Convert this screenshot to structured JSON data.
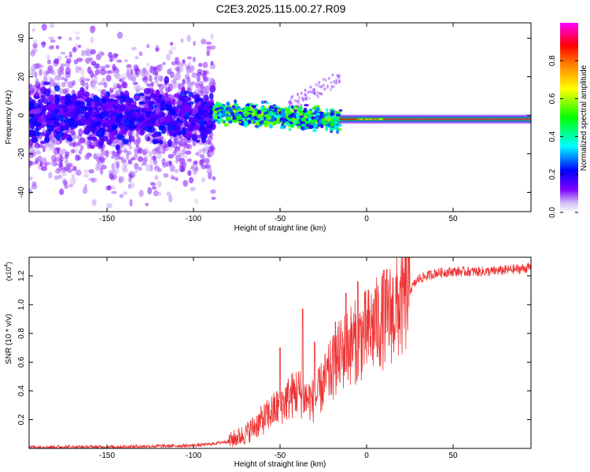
{
  "title": "C2E3.2025.115.00.27.R09",
  "chart_data": [
    {
      "type": "heatmap",
      "xlabel": "Height of straight line (km)",
      "ylabel": "Frequency (Hz)",
      "xlim": [
        -195,
        95
      ],
      "ylim": [
        -50,
        48
      ],
      "xticks": [
        -150,
        -100,
        -50,
        0,
        50
      ],
      "yticks": [
        -40,
        -20,
        0,
        20,
        40
      ],
      "colorbar": {
        "label": "Normalized spectral amplitude",
        "range": [
          0.0,
          1.0
        ],
        "ticks": [
          0.0,
          0.2,
          0.4,
          0.6,
          0.8
        ],
        "tick_labels": [
          "0.0",
          "0.2",
          "0.4",
          "0.6",
          "0.8"
        ],
        "colormap": [
          "#ffffff",
          "#c8b4f0",
          "#8000ff",
          "#0000ff",
          "#00ffff",
          "#00ff00",
          "#ffff00",
          "#ff8000",
          "#ff0000",
          "#ff00ff"
        ]
      },
      "features": [
        {
          "x_range": [
            -195,
            -90
          ],
          "freq_center": 0,
          "freq_spread": 45,
          "amplitude": "low, scattered"
        },
        {
          "x_range": [
            -90,
            -15
          ],
          "freq_center": 0,
          "freq_spread": 8,
          "amplitude": "medium"
        },
        {
          "x_range": [
            -15,
            95
          ],
          "freq_center": -2,
          "freq_spread": 2,
          "amplitude": "high"
        }
      ]
    },
    {
      "type": "line",
      "xlabel": "Height of straight line (km)",
      "ylabel": "SNR (10 * v/v)",
      "yscale_label": "(x10",
      "yscale_exp": "4",
      "xlim": [
        -195,
        95
      ],
      "ylim": [
        0,
        1.33
      ],
      "xticks": [
        -150,
        -100,
        -50,
        0,
        50
      ],
      "yticks": [
        0.2,
        0.4,
        0.6,
        0.8,
        1.0,
        1.2
      ],
      "ytick_labels": [
        "0.2",
        "0.4",
        "0.6",
        "0.8",
        "1.0",
        "1.2"
      ],
      "color": "#ee3333",
      "series": [
        {
          "x": [
            -195,
            -150,
            -100,
            -90,
            -80,
            -70,
            -60,
            -50,
            -45,
            -40,
            -35,
            -30,
            -25,
            -20,
            -15,
            -10,
            -5,
            0,
            5,
            10,
            15,
            20,
            25,
            30,
            35,
            40,
            50,
            60,
            70,
            80,
            90,
            95
          ],
          "y": [
            0.01,
            0.01,
            0.02,
            0.03,
            0.05,
            0.1,
            0.2,
            0.3,
            0.35,
            0.4,
            0.35,
            0.33,
            0.45,
            0.55,
            0.65,
            0.72,
            0.75,
            0.8,
            0.85,
            0.9,
            0.95,
            1.0,
            1.1,
            1.18,
            1.2,
            1.22,
            1.23,
            1.23,
            1.23,
            1.24,
            1.25,
            1.26
          ],
          "peaks": [
            {
              "x": -50,
              "y": 0.7
            },
            {
              "x": -37,
              "y": 0.97
            },
            {
              "x": -30,
              "y": 0.74
            },
            {
              "x": -18,
              "y": 0.88
            },
            {
              "x": -12,
              "y": 1.08
            },
            {
              "x": -5,
              "y": 1.16
            },
            {
              "x": 5,
              "y": 1.11
            },
            {
              "x": 10,
              "y": 1.24
            }
          ]
        }
      ]
    }
  ]
}
